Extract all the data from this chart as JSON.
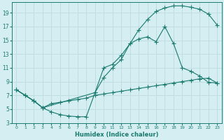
{
  "xlabel": "Humidex (Indice chaleur)",
  "bg_color": "#d4eef2",
  "grid_color": "#c0dde2",
  "line_color": "#1a7a6e",
  "xlim": [
    -0.5,
    23.5
  ],
  "ylim": [
    3,
    20.5
  ],
  "xticks": [
    0,
    1,
    2,
    3,
    4,
    5,
    6,
    7,
    8,
    9,
    10,
    11,
    12,
    13,
    14,
    15,
    16,
    17,
    18,
    19,
    20,
    21,
    22,
    23
  ],
  "yticks": [
    3,
    5,
    7,
    9,
    11,
    13,
    15,
    17,
    19
  ],
  "curve_upper_x": [
    0,
    1,
    2,
    3,
    9,
    10,
    11,
    12,
    13,
    14,
    15,
    16,
    17,
    18,
    19,
    20,
    21,
    22,
    23
  ],
  "curve_upper_y": [
    7.8,
    7.0,
    6.2,
    5.2,
    7.4,
    9.6,
    11.0,
    12.2,
    14.5,
    16.5,
    18.0,
    19.2,
    19.7,
    20.0,
    20.0,
    19.8,
    19.5,
    18.8,
    17.2
  ],
  "curve_mid_x": [
    0,
    1,
    2,
    3,
    4,
    5,
    6,
    7,
    8,
    9,
    10,
    11,
    12,
    13,
    14,
    15,
    16,
    17,
    18,
    19,
    20,
    21,
    22,
    23
  ],
  "curve_mid_y": [
    7.8,
    7.0,
    6.2,
    5.2,
    4.6,
    4.2,
    4.0,
    3.9,
    3.9,
    7.4,
    11.0,
    11.5,
    12.8,
    14.5,
    15.2,
    15.5,
    14.8,
    17.0,
    14.5,
    11.0,
    10.5,
    9.8,
    8.9,
    8.8
  ],
  "curve_low_x": [
    0,
    1,
    2,
    3,
    4,
    5,
    6,
    7,
    8,
    9,
    10,
    11,
    12,
    13,
    14,
    15,
    16,
    17,
    18,
    19,
    20,
    21,
    22,
    23
  ],
  "curve_low_y": [
    7.8,
    7.0,
    6.2,
    5.2,
    5.8,
    6.0,
    6.2,
    6.4,
    6.6,
    7.0,
    7.2,
    7.4,
    7.6,
    7.8,
    8.0,
    8.2,
    8.4,
    8.6,
    8.8,
    9.0,
    9.2,
    9.4,
    9.5,
    8.8
  ]
}
